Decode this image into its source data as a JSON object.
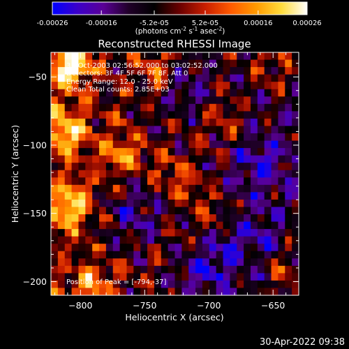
{
  "chart_data": {
    "type": "heatmap",
    "title": "Reconstructed RHESSI Image",
    "xlabel": "Heliocentric X (arcsec)",
    "ylabel": "Heliocentric Y (arcsec)",
    "xlim": [
      -823,
      -630
    ],
    "ylim": [
      -210,
      -32
    ],
    "x_ticks": [
      -800,
      -750,
      -700,
      -650
    ],
    "x_tick_labels": [
      "−800",
      "−750",
      "−700",
      "−650"
    ],
    "y_ticks": [
      -50,
      -100,
      -150,
      -200
    ],
    "y_tick_labels": [
      "−50",
      "−100",
      "−150",
      "−200"
    ],
    "colorbar": {
      "range": [
        -0.00026,
        0.00026
      ],
      "ticks": [
        -0.00026,
        -0.00016,
        -5.2e-05,
        5.2e-05,
        0.00016,
        0.00026
      ],
      "tick_labels": [
        "-0.00026",
        "-0.00016",
        "-5.2e-05",
        "5.2e-05",
        "0.00016",
        "0.00026"
      ],
      "unit_prefix": "(photons cm",
      "unit_exp1": "-2",
      "unit_mid1": " s",
      "unit_exp2": "-1",
      "unit_mid2": " asec",
      "unit_exp3": "-2",
      "unit_suffix": ")",
      "colormap": [
        "#0000ff",
        "#3c00c8",
        "#5a0096",
        "#200028",
        "#000000",
        "#6a0000",
        "#c81e00",
        "#ff5a00",
        "#ff9a00",
        "#ffdc3c",
        "#ffffff"
      ]
    },
    "annotations": {
      "time_range": "31-Oct-2003 02:56:52.000 to 03:02:52.000",
      "detectors": "Detectors: 3F 4F 5F 6F 7F 8F, Att 0",
      "energy_range": "Energy Range: 12.0 - 25.0 keV",
      "total_counts": "Clean    Total counts: 2.85E+03",
      "peak": "Position of Peak = [-794,-37]"
    },
    "peak_position": [
      -794,
      -37
    ],
    "intensity_field": {
      "grid_cols": 36,
      "grid_rows": 33,
      "bright_sources": [
        {
          "x": -808,
          "y": -40,
          "strength": 1.0
        },
        {
          "x": -812,
          "y": -90,
          "strength": 0.8
        },
        {
          "x": -808,
          "y": -145,
          "strength": 0.75
        },
        {
          "x": -790,
          "y": -205,
          "strength": 0.55
        },
        {
          "x": -770,
          "y": -105,
          "strength": 0.55
        },
        {
          "x": -740,
          "y": -45,
          "strength": 0.45
        },
        {
          "x": -725,
          "y": -125,
          "strength": 0.4
        },
        {
          "x": -690,
          "y": -80,
          "strength": 0.35
        },
        {
          "x": -650,
          "y": -40,
          "strength": 0.4
        },
        {
          "x": -640,
          "y": -195,
          "strength": 0.35
        },
        {
          "x": -700,
          "y": -150,
          "strength": 0.3
        }
      ],
      "dark_sources": [
        {
          "x": -760,
          "y": -150,
          "strength": 0.7
        },
        {
          "x": -700,
          "y": -190,
          "strength": 0.8
        },
        {
          "x": -660,
          "y": -115,
          "strength": 0.6
        },
        {
          "x": -720,
          "y": -60,
          "strength": 0.5
        },
        {
          "x": -670,
          "y": -165,
          "strength": 0.6
        }
      ]
    }
  },
  "footer": {
    "timestamp": "30-Apr-2022 09:38"
  }
}
